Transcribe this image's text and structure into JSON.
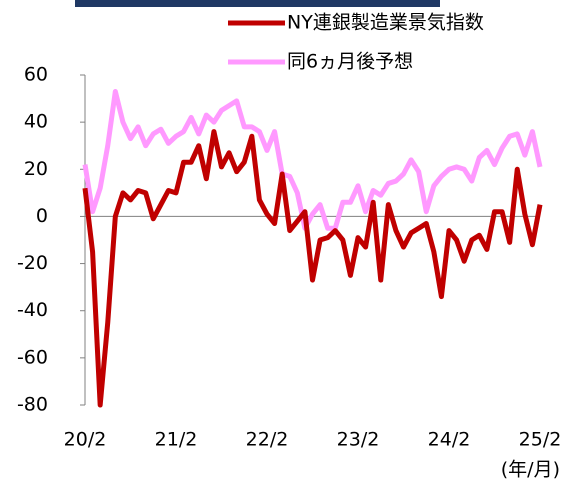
{
  "chart_data": {
    "type": "line",
    "x_label": "(年/月)",
    "categories": [
      "20/2",
      null,
      null,
      null,
      null,
      null,
      null,
      null,
      null,
      null,
      null,
      null,
      "21/2",
      null,
      null,
      null,
      null,
      null,
      null,
      null,
      null,
      null,
      null,
      null,
      "22/2",
      null,
      null,
      null,
      null,
      null,
      null,
      null,
      null,
      null,
      null,
      null,
      "23/2",
      null,
      null,
      null,
      null,
      null,
      null,
      null,
      null,
      null,
      null,
      null,
      "24/2",
      null,
      null,
      null,
      null,
      null,
      null,
      null,
      null,
      null,
      null,
      null,
      "25/2"
    ],
    "series": [
      {
        "name": "NY連銀製造業景気指数",
        "color": "#c00000",
        "values": [
          12,
          -15,
          -80,
          -45,
          0,
          10,
          7,
          11,
          10,
          -1,
          5,
          11,
          10,
          23,
          23,
          30,
          16,
          36,
          21,
          27,
          19,
          23,
          34,
          7,
          1,
          -3,
          18,
          -6,
          -2,
          2,
          -27,
          -10,
          -9,
          -6,
          -10,
          -25,
          -9,
          -13,
          6,
          -27,
          5,
          -6,
          -13,
          -7,
          -5,
          -3,
          -15,
          -34,
          -6,
          -10,
          -19,
          -10,
          -8,
          -14,
          2,
          2,
          -11,
          20,
          1,
          -12,
          5
        ]
      },
      {
        "name": "同6ヵ月後予想",
        "color": "#ff99ff",
        "values": [
          22,
          2,
          12,
          30,
          53,
          40,
          33,
          38,
          30,
          35,
          37,
          31,
          34,
          36,
          42,
          35,
          43,
          40,
          45,
          47,
          49,
          38,
          38,
          36,
          28,
          36,
          18,
          17,
          10,
          -5,
          1,
          5,
          -5,
          -5,
          6,
          6,
          13,
          2,
          11,
          9,
          14,
          15,
          18,
          24,
          19,
          2,
          13,
          17,
          20,
          21,
          20,
          15,
          25,
          28,
          22,
          29,
          34,
          35,
          26,
          36,
          21
        ]
      }
    ],
    "ylim": [
      -80,
      60
    ],
    "yticks": [
      -80,
      -60,
      -40,
      -20,
      0,
      20,
      40,
      60
    ]
  }
}
